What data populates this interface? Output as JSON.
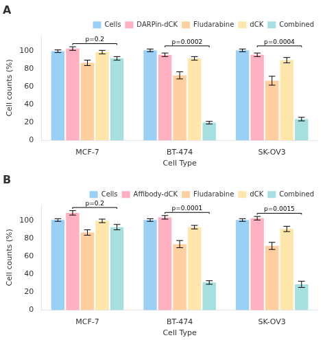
{
  "chart_data": [
    {
      "type": "bar",
      "title": "A",
      "xlabel": "Cell Type",
      "ylabel": "Cell counts (%)",
      "categories": [
        "MCF-7",
        "BT-474",
        "SK-OV3"
      ],
      "series": [
        {
          "name": "Cells",
          "values": [
            100,
            101,
            101
          ],
          "errors": [
            1.5,
            1.5,
            1.5
          ]
        },
        {
          "name": "DARPin-dCK",
          "values": [
            103,
            96,
            96
          ],
          "errors": [
            2.0,
            2.0,
            2.0
          ]
        },
        {
          "name": "Fludarabine",
          "values": [
            87,
            73,
            67
          ],
          "errors": [
            3.0,
            4.0,
            5.0
          ]
        },
        {
          "name": "dCK",
          "values": [
            99,
            92,
            90
          ],
          "errors": [
            2.0,
            2.0,
            3.0
          ]
        },
        {
          "name": "Combined",
          "values": [
            92,
            20,
            24
          ],
          "errors": [
            2.0,
            1.5,
            2.0
          ]
        }
      ],
      "annotations": [
        "p=0.2",
        "p=0.0002",
        "p=0.0004"
      ],
      "ylim": [
        0,
        118
      ],
      "yticks": [
        0,
        20,
        40,
        60,
        80,
        100
      ],
      "grid": false,
      "legend": "upper right"
    },
    {
      "type": "bar",
      "title": "B",
      "xlabel": "Cell Type",
      "ylabel": "Cell counts (%)",
      "categories": [
        "MCF-7",
        "BT-474",
        "SK-OV3"
      ],
      "series": [
        {
          "name": "Cells",
          "values": [
            101,
            101,
            101
          ],
          "errors": [
            1.5,
            1.5,
            1.5
          ]
        },
        {
          "name": "Affibody-dCK",
          "values": [
            109,
            104,
            103
          ],
          "errors": [
            2.5,
            2.0,
            2.0
          ]
        },
        {
          "name": "Fludarabine",
          "values": [
            87,
            74,
            72
          ],
          "errors": [
            3.0,
            4.0,
            4.0
          ]
        },
        {
          "name": "dCK",
          "values": [
            100,
            93,
            91
          ],
          "errors": [
            2.0,
            2.0,
            3.0
          ]
        },
        {
          "name": "Combined",
          "values": [
            93,
            31,
            29
          ],
          "errors": [
            3.0,
            2.0,
            3.5
          ]
        }
      ],
      "annotations": [
        "p=0.2",
        "p=0.0001",
        "p=0.0015"
      ],
      "ylim": [
        0,
        118
      ],
      "yticks": [
        0,
        20,
        40,
        60,
        80,
        100
      ],
      "grid": false,
      "legend": "upper right"
    }
  ]
}
